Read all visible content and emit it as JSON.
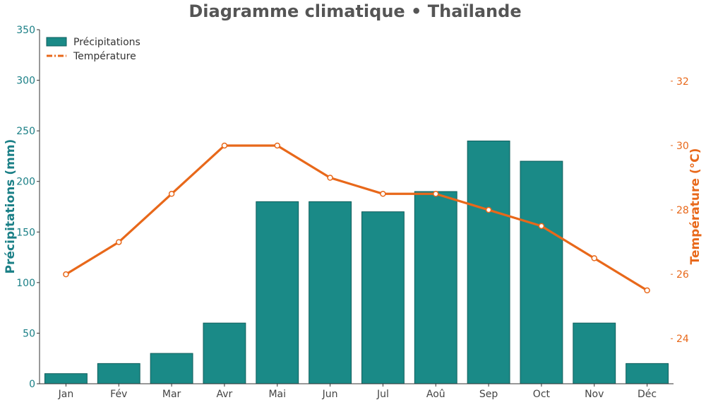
{
  "chart_data": {
    "type": "bar",
    "title": "Diagramme climatique • Thaïlande",
    "categories": [
      "Jan",
      "Fév",
      "Mar",
      "Avr",
      "Mai",
      "Jun",
      "Jul",
      "Aoû",
      "Sep",
      "Oct",
      "Nov",
      "Déc"
    ],
    "series": [
      {
        "name": "Précipitations",
        "type": "bar",
        "axis": "left",
        "color": "#1a8a87",
        "values": [
          10,
          20,
          30,
          60,
          180,
          180,
          170,
          190,
          240,
          220,
          60,
          20
        ]
      },
      {
        "name": "Température",
        "type": "line",
        "axis": "right",
        "color": "#e8681a",
        "values": [
          26.0,
          27.0,
          28.5,
          30.0,
          30.0,
          29.0,
          28.5,
          28.5,
          28.0,
          27.5,
          26.5,
          25.5
        ]
      }
    ],
    "ylabel": "Précipitations (mm)",
    "y2label": "Température (°C)",
    "ylim": [
      0,
      350
    ],
    "y2lim": [
      22.6,
      33.6
    ],
    "yticks": [
      "0",
      "50",
      "100",
      "150",
      "200",
      "250",
      "300",
      "350"
    ],
    "y2ticks": [
      "24",
      "26",
      "28",
      "30",
      "32"
    ],
    "ylabel_color": "#1a7f86",
    "y2label_color": "#e8681a",
    "legend_position": "top-left",
    "grid": false
  }
}
